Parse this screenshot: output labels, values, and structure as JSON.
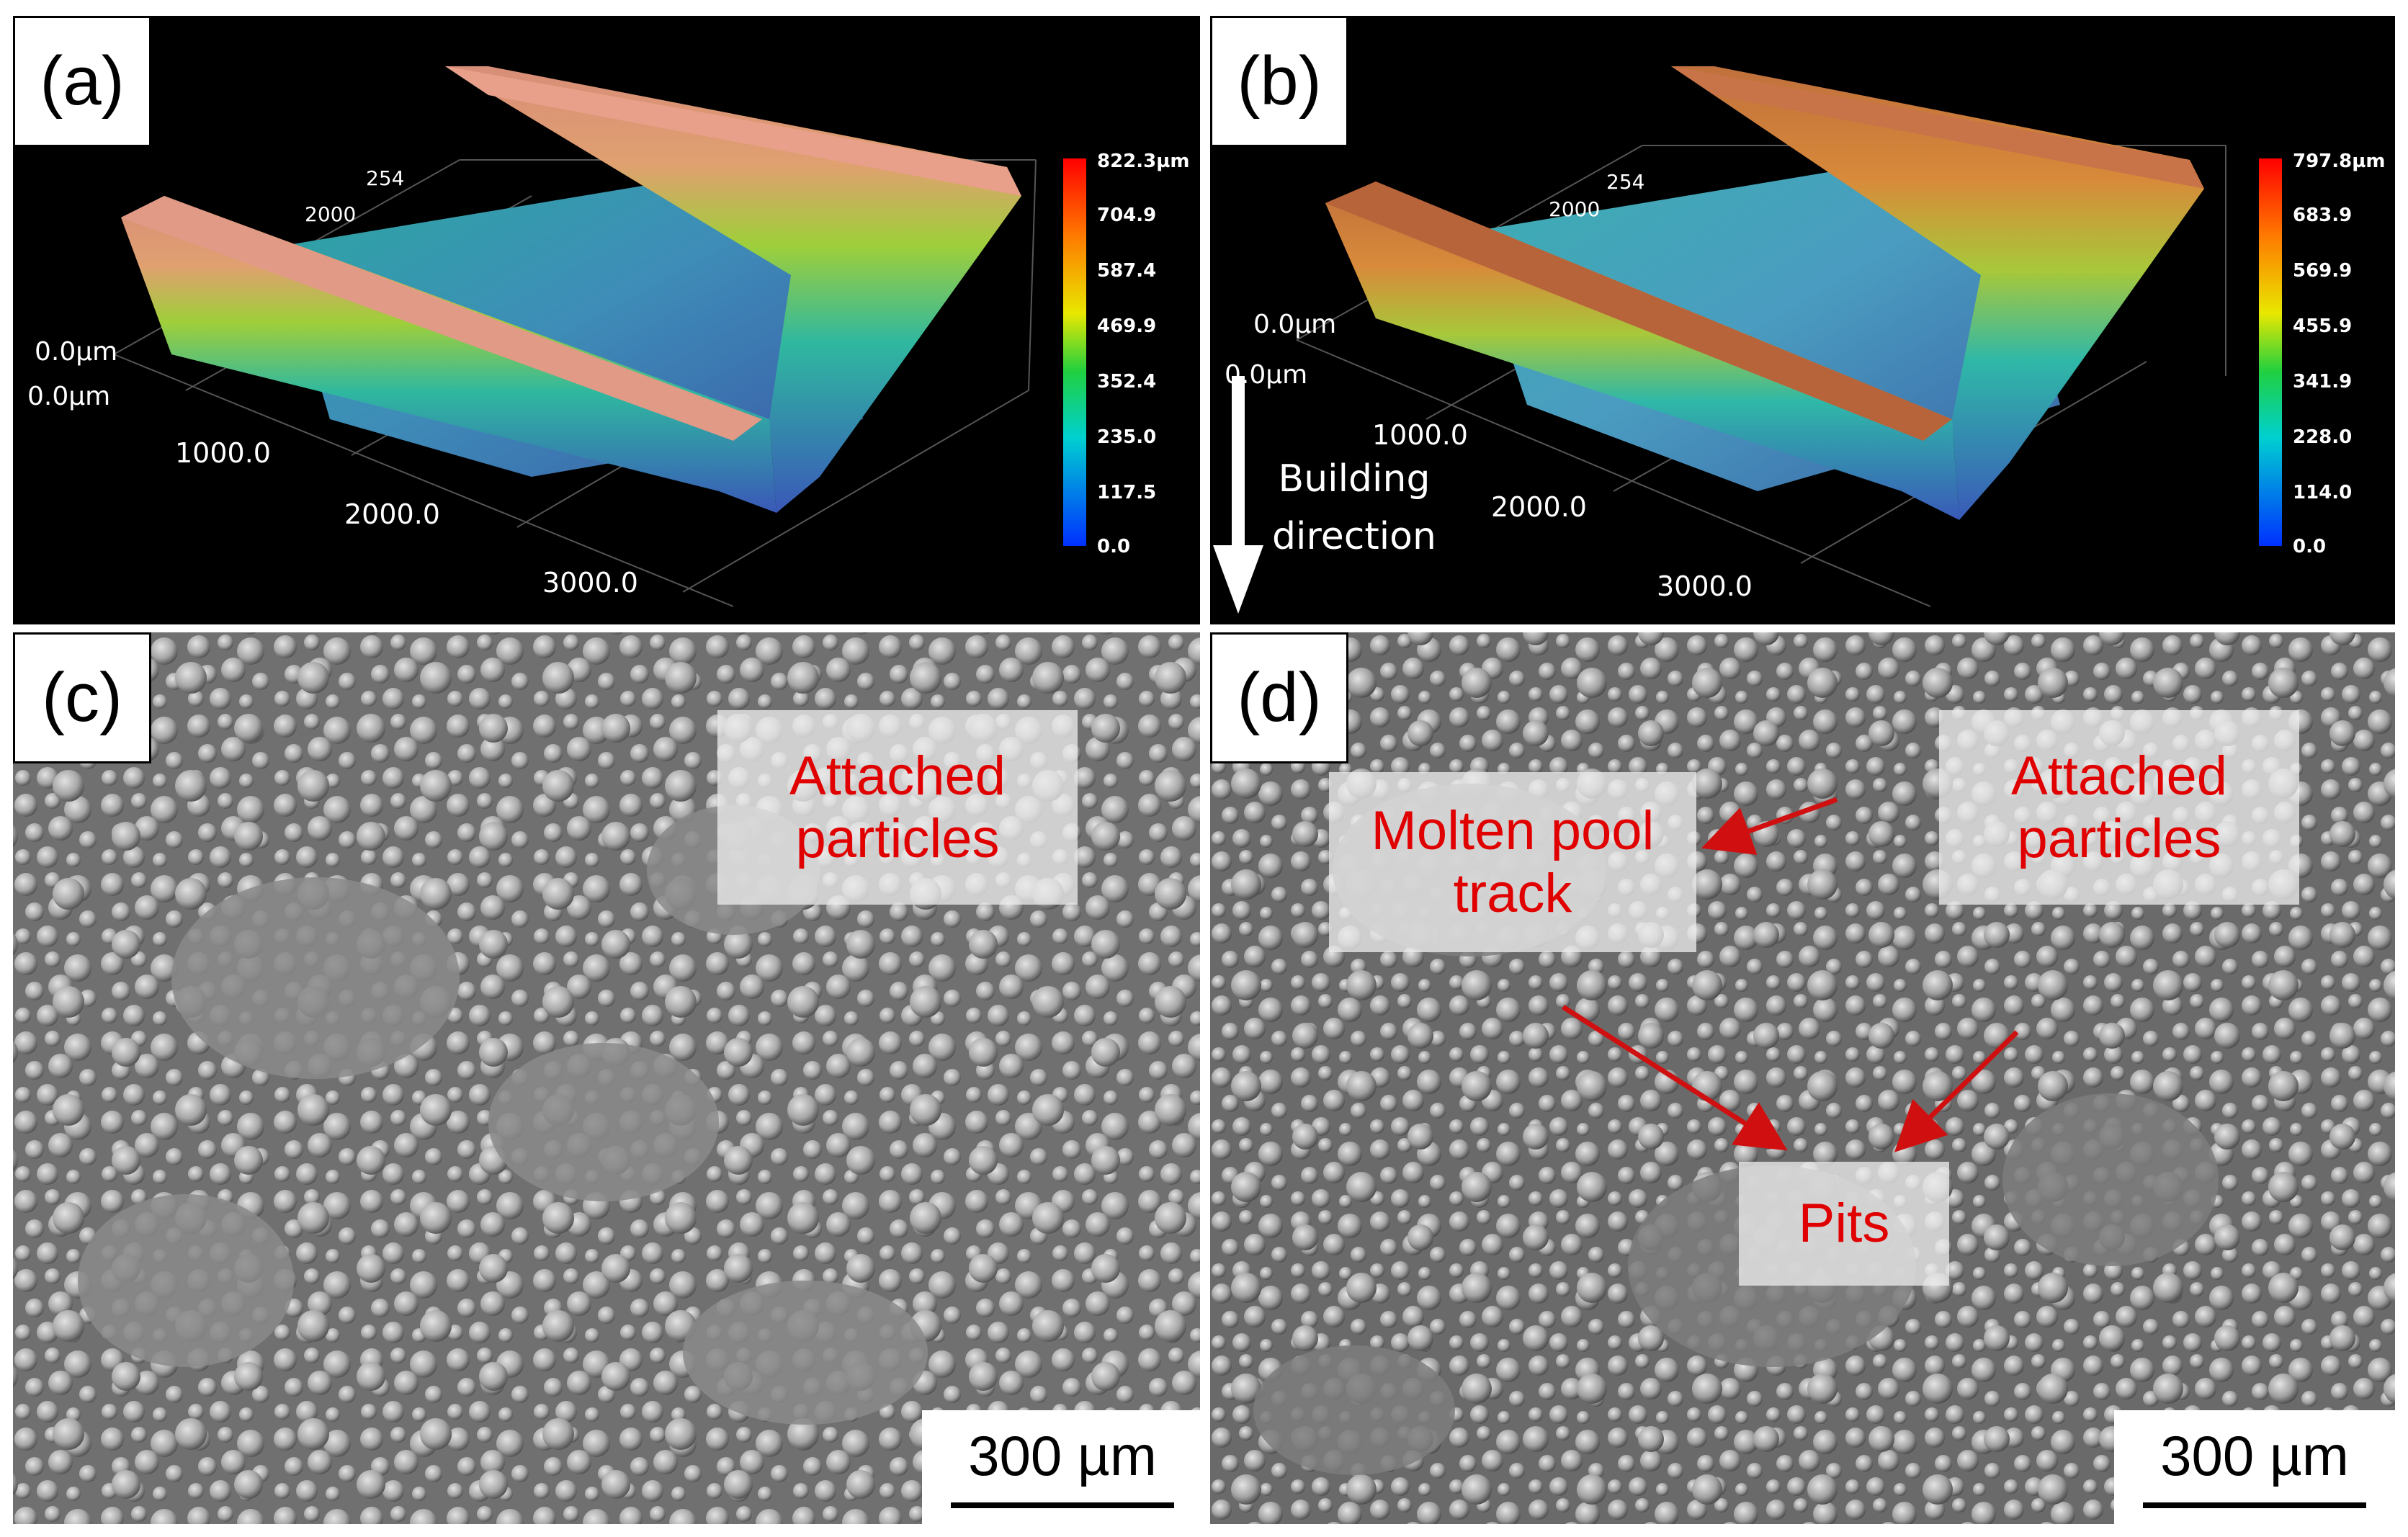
{
  "panels": {
    "a": {
      "label": "(a)",
      "axis_labels": [
        "0.0µm",
        "0.0µm",
        "1000.0",
        "2000.0",
        "3000.0",
        "2000",
        "254"
      ],
      "colorbar": [
        "822.3µm",
        "704.9",
        "587.4",
        "469.9",
        "352.4",
        "235.0",
        "117.5",
        "0.0"
      ]
    },
    "b": {
      "label": "(b)",
      "axis_labels": [
        "0.0µm",
        "0.0µm",
        "1000.0",
        "2000.0",
        "3000.0",
        "2000",
        "254"
      ],
      "colorbar": [
        "797.8µm",
        "683.9",
        "569.9",
        "455.9",
        "341.9",
        "228.0",
        "114.0",
        "0.0"
      ],
      "direction_label": [
        "Building",
        "direction"
      ]
    },
    "c": {
      "label": "(c)",
      "annotation": [
        "Attached",
        "particles"
      ],
      "scale_bar": "300 µm"
    },
    "d": {
      "label": "(d)",
      "annotations": {
        "molten": [
          "Molten pool",
          "track"
        ],
        "attached": [
          "Attached",
          "particles"
        ],
        "pits": "Pits"
      },
      "scale_bar": "300 µm"
    }
  },
  "colors": {
    "annotation_text": "#e00000",
    "arrow": "#d01010",
    "background_3d": "#000000"
  }
}
